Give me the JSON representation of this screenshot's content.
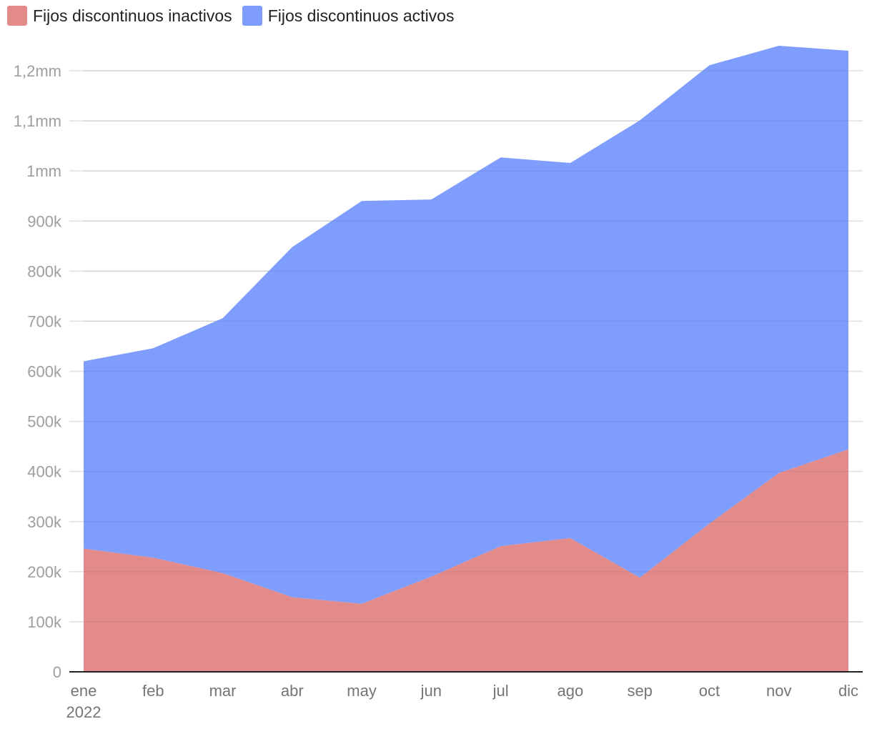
{
  "chart_data": {
    "type": "area",
    "stacked": true,
    "title": "",
    "xlabel": "",
    "ylabel": "",
    "categories": [
      "ene",
      "feb",
      "mar",
      "abr",
      "may",
      "jun",
      "jul",
      "ago",
      "sep",
      "oct",
      "nov",
      "dic"
    ],
    "x_sublabel": "2022",
    "series": [
      {
        "name": "Fijos discontinuos inactivos",
        "color": "#e38b8b",
        "values": [
          246000,
          228000,
          197000,
          149000,
          136000,
          190000,
          251000,
          267000,
          188000,
          296000,
          397000,
          444000
        ]
      },
      {
        "name": "Fijos discontinuos activos",
        "color": "#7f9dfc",
        "values": [
          374000,
          418000,
          509000,
          699000,
          804000,
          753000,
          776000,
          749000,
          913000,
          915000,
          853000,
          796000
        ]
      }
    ],
    "ylim": [
      0,
      1250000
    ],
    "yticks": [
      0,
      100000,
      200000,
      300000,
      400000,
      500000,
      600000,
      700000,
      800000,
      900000,
      1000000,
      1100000,
      1200000
    ],
    "ytick_labels": [
      "0",
      "100k",
      "200k",
      "300k",
      "400k",
      "500k",
      "600k",
      "700k",
      "800k",
      "900k",
      "1mm",
      "1,1mm",
      "1,2mm"
    ],
    "grid": true,
    "legend_position": "top-left"
  }
}
